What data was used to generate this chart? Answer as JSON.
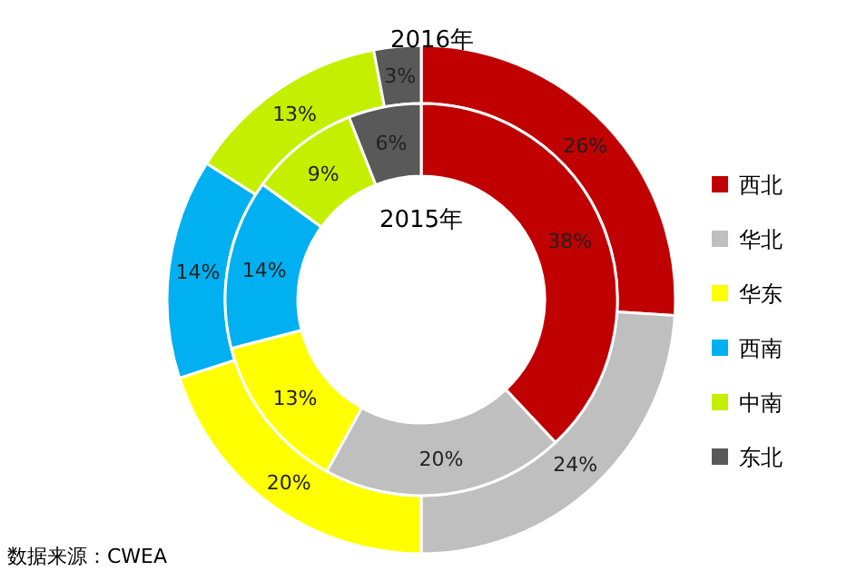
{
  "chart_data": {
    "type": "donut",
    "categories": [
      "西北",
      "华北",
      "华东",
      "西南",
      "中南",
      "东北"
    ],
    "colors": [
      "#c00000",
      "#bfbfbf",
      "#ffff00",
      "#00b0f0",
      "#c4f000",
      "#595959"
    ],
    "series": [
      {
        "name": "2016年",
        "values": [
          26,
          24,
          20,
          14,
          13,
          3
        ],
        "value_labels": [
          "26%",
          "24%",
          "20%",
          "14%",
          "13%",
          "3%"
        ]
      },
      {
        "name": "2015年",
        "values": [
          38,
          20,
          13,
          14,
          9,
          6
        ],
        "value_labels": [
          "38%",
          "20%",
          "13%",
          "14%",
          "9%",
          "6%"
        ]
      }
    ],
    "legend": "right",
    "annotations": [
      "数据来源：CWEA"
    ]
  }
}
